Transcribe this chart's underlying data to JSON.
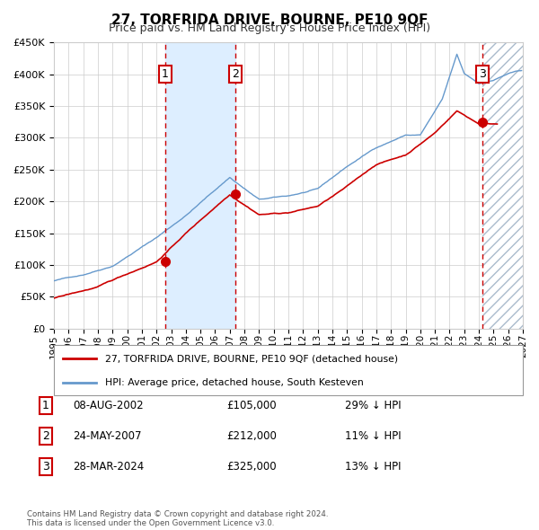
{
  "title": "27, TORFRIDA DRIVE, BOURNE, PE10 9QF",
  "subtitle": "Price paid vs. HM Land Registry's House Price Index (HPI)",
  "legend_line1": "27, TORFRIDA DRIVE, BOURNE, PE10 9QF (detached house)",
  "legend_line2": "HPI: Average price, detached house, South Kesteven",
  "footer1": "Contains HM Land Registry data © Crown copyright and database right 2024.",
  "footer2": "This data is licensed under the Open Government Licence v3.0.",
  "transactions": [
    {
      "num": 1,
      "date": "08-AUG-2002",
      "price": 105000,
      "hpi_rel": "29% ↓ HPI",
      "x_year": 2002.6
    },
    {
      "num": 2,
      "date": "24-MAY-2007",
      "price": 212000,
      "hpi_rel": "11% ↓ HPI",
      "x_year": 2007.4
    },
    {
      "num": 3,
      "date": "28-MAR-2024",
      "price": 325000,
      "hpi_rel": "13% ↓ HPI",
      "x_year": 2024.25
    }
  ],
  "hpi_color": "#6699cc",
  "price_color": "#cc0000",
  "shade_color": "#ddeeff",
  "x_start": 1995,
  "x_end": 2027,
  "y_min": 0,
  "y_max": 450000,
  "y_ticks": [
    0,
    50000,
    100000,
    150000,
    200000,
    250000,
    300000,
    350000,
    400000,
    450000
  ],
  "x_ticks": [
    1995,
    1996,
    1997,
    1998,
    1999,
    2000,
    2001,
    2002,
    2003,
    2004,
    2005,
    2006,
    2007,
    2008,
    2009,
    2010,
    2011,
    2012,
    2013,
    2014,
    2015,
    2016,
    2017,
    2018,
    2019,
    2020,
    2021,
    2022,
    2023,
    2024,
    2025,
    2026,
    2027
  ]
}
